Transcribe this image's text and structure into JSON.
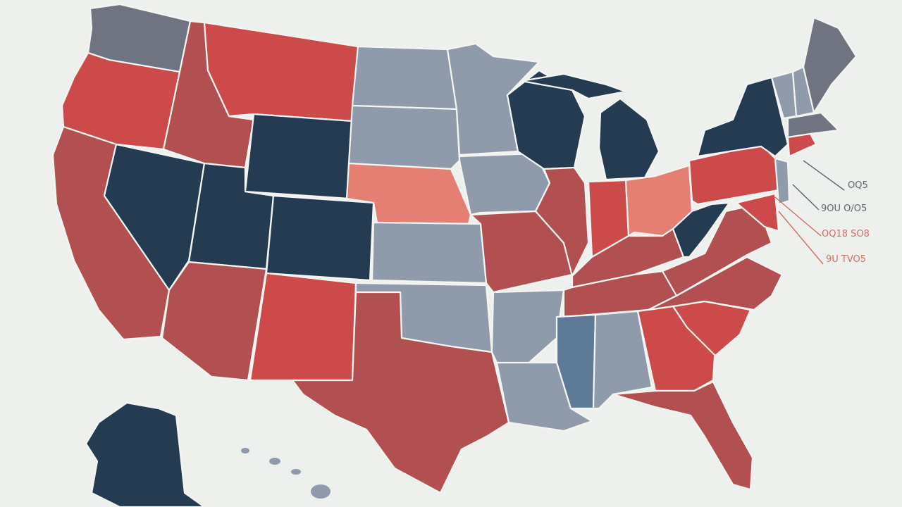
{
  "colors": {
    "background": "#eef0ee",
    "dark_navy": "#253b52",
    "slate_blue": "#5d7a96",
    "gray_blue": "#8f9bab",
    "slate_gray": "#6f7480",
    "red": "#cc4a4a",
    "dark_red": "#b24f50",
    "salmon": "#e57f74",
    "border": "#f4f5f3"
  },
  "callouts": [
    {
      "text": "OQ5",
      "color": "#5e6570"
    },
    {
      "text": "9OU O/O5",
      "color": "#5e6570"
    },
    {
      "text": "OQ18 SO8",
      "color": "#d56a63"
    },
    {
      "text": "9U TVO5",
      "color": "#d56a63"
    }
  ]
}
